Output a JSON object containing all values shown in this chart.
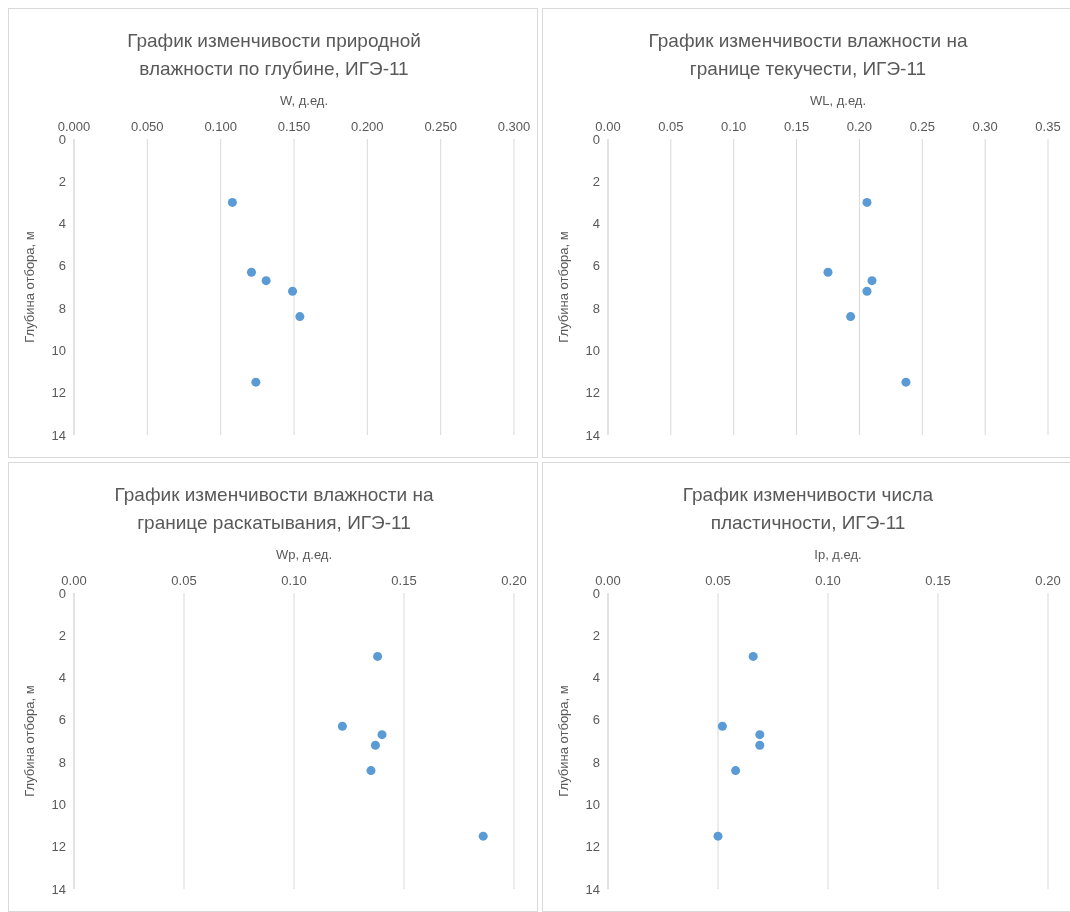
{
  "chart_data": [
    {
      "type": "scatter",
      "title": "График изменчивости природной влажности по глубине, ИГЭ-11",
      "xlabel": "W, д.ед.",
      "ylabel": "Глубина отбора, м",
      "x": [
        0.108,
        0.121,
        0.131,
        0.149,
        0.154,
        0.124
      ],
      "values": [
        3.0,
        6.3,
        6.7,
        7.2,
        8.4,
        11.5
      ],
      "color": "#5b9bd5",
      "marker": "circle",
      "xlim": [
        0,
        0.3
      ],
      "xticks": [
        {
          "value": 0,
          "label": "0.000"
        },
        {
          "value": 0.05,
          "label": "0.050"
        },
        {
          "value": 0.1,
          "label": "0.100"
        },
        {
          "value": 0.15,
          "label": "0.150"
        },
        {
          "value": 0.2,
          "label": "0.200"
        },
        {
          "value": 0.25,
          "label": "0.250"
        },
        {
          "value": 0.3,
          "label": "0.300"
        }
      ],
      "ylim": [
        14,
        0
      ],
      "yticks": [
        0,
        2,
        4,
        6,
        8,
        10,
        12,
        14
      ],
      "grid": "x"
    },
    {
      "type": "scatter",
      "title": "График изменчивости влажности на границе текучести, ИГЭ-11",
      "xlabel": "WL, д.ед.",
      "ylabel": "Глубина отбора, м",
      "x": [
        0.206,
        0.175,
        0.21,
        0.206,
        0.193,
        0.237
      ],
      "values": [
        3.0,
        6.3,
        6.7,
        7.2,
        8.4,
        11.5
      ],
      "color": "#5b9bd5",
      "marker": "circle",
      "xlim": [
        0,
        0.35
      ],
      "xticks": [
        {
          "value": 0,
          "label": "0.00"
        },
        {
          "value": 0.05,
          "label": "0.05"
        },
        {
          "value": 0.1,
          "label": "0.10"
        },
        {
          "value": 0.15,
          "label": "0.15"
        },
        {
          "value": 0.2,
          "label": "0.20"
        },
        {
          "value": 0.25,
          "label": "0.25"
        },
        {
          "value": 0.3,
          "label": "0.30"
        },
        {
          "value": 0.35,
          "label": "0.35"
        }
      ],
      "ylim": [
        14,
        0
      ],
      "yticks": [
        0,
        2,
        4,
        6,
        8,
        10,
        12,
        14
      ],
      "grid": "x"
    },
    {
      "type": "scatter",
      "title": "График изменчивости влажности на границе раскатывания, ИГЭ-11",
      "xlabel": "Wp, д.ед.",
      "ylabel": "Глубина отбора, м",
      "x": [
        0.138,
        0.122,
        0.14,
        0.137,
        0.135,
        0.186
      ],
      "values": [
        3.0,
        6.3,
        6.7,
        7.2,
        8.4,
        11.5
      ],
      "color": "#5b9bd5",
      "marker": "circle",
      "xlim": [
        0,
        0.2
      ],
      "xticks": [
        {
          "value": 0,
          "label": "0.00"
        },
        {
          "value": 0.05,
          "label": "0.05"
        },
        {
          "value": 0.1,
          "label": "0.10"
        },
        {
          "value": 0.15,
          "label": "0.15"
        },
        {
          "value": 0.2,
          "label": "0.20"
        }
      ],
      "ylim": [
        14,
        0
      ],
      "yticks": [
        0,
        2,
        4,
        6,
        8,
        10,
        12,
        14
      ],
      "grid": "x"
    },
    {
      "type": "scatter",
      "title": "График изменчивости числа пластичности, ИГЭ-11",
      "xlabel": "Ip, д.ед.",
      "ylabel": "Глубина отбора, м",
      "x": [
        0.066,
        0.052,
        0.069,
        0.069,
        0.058,
        0.05
      ],
      "values": [
        3.0,
        6.3,
        6.7,
        7.2,
        8.4,
        11.5
      ],
      "color": "#5b9bd5",
      "marker": "circle",
      "xlim": [
        0,
        0.2
      ],
      "xticks": [
        {
          "value": 0,
          "label": "0.00"
        },
        {
          "value": 0.05,
          "label": "0.05"
        },
        {
          "value": 0.1,
          "label": "0.10"
        },
        {
          "value": 0.15,
          "label": "0.15"
        },
        {
          "value": 0.2,
          "label": "0.20"
        }
      ],
      "ylim": [
        14,
        0
      ],
      "yticks": [
        0,
        2,
        4,
        6,
        8,
        10,
        12,
        14
      ],
      "grid": "x"
    }
  ]
}
